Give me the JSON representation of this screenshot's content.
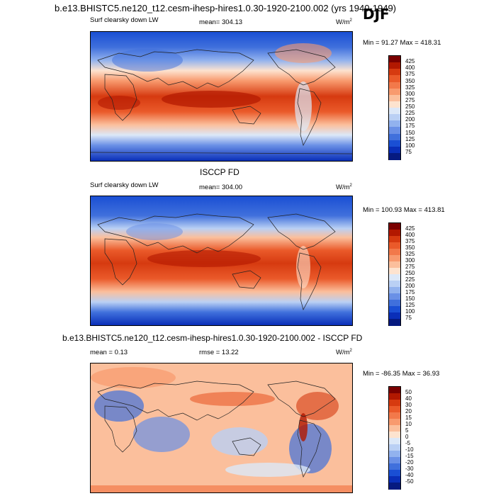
{
  "header": {
    "title": "b.e13.BHISTC5.ne120_t12.cesm-ihesp-hires1.0.30-1920-2100.002 (yrs 1940-1949)",
    "season": "DJF"
  },
  "panel1": {
    "variable": "Surf clearsky down LW",
    "mean_text": "mean= 304.13",
    "units": "W/m",
    "units_sup": "2",
    "minmax": "Min =  91.27 Max = 418.31"
  },
  "panel2": {
    "title": "ISCCP FD",
    "variable": "Surf clearsky down LW",
    "mean_text": "mean= 304.00",
    "units": "W/m",
    "units_sup": "2",
    "minmax": "Min = 100.93 Max = 413.81"
  },
  "panel3": {
    "title": "b.e13.BHISTC5.ne120_t12.cesm-ihesp-hires1.0.30-1920-2100.002 - ISCCP FD",
    "mean_text": "mean =   0.13",
    "rmse_text": "rmse =  13.22",
    "units": "W/m",
    "units_sup": "2",
    "minmax": "Min = -86.35 Max =  36.93"
  },
  "colorbar_abs": {
    "levels": [
      "425",
      "400",
      "375",
      "350",
      "325",
      "300",
      "275",
      "250",
      "225",
      "200",
      "175",
      "150",
      "125",
      "100",
      "75"
    ],
    "colors": [
      "#7a0000",
      "#b21800",
      "#d63a10",
      "#ea5a2a",
      "#f2794a",
      "#f89a6e",
      "#fbbf9c",
      "#fde3cf",
      "#dce8f8",
      "#bad0f4",
      "#92b2ee",
      "#6a90e6",
      "#4070dc",
      "#1a4fd4",
      "#0a2fb8",
      "#061a80"
    ]
  },
  "colorbar_diff": {
    "levels": [
      "50",
      "40",
      "30",
      "20",
      "15",
      "10",
      "5",
      "0",
      "-5",
      "-10",
      "-15",
      "-20",
      "-30",
      "-40",
      "-50"
    ],
    "colors": [
      "#7a0000",
      "#b21800",
      "#d63a10",
      "#ea5a2a",
      "#f2794a",
      "#f89a6e",
      "#fbbf9c",
      "#fde3cf",
      "#dce8f8",
      "#bad0f4",
      "#92b2ee",
      "#6a90e6",
      "#4070dc",
      "#1a4fd4",
      "#0a2fb8",
      "#061a80"
    ]
  }
}
